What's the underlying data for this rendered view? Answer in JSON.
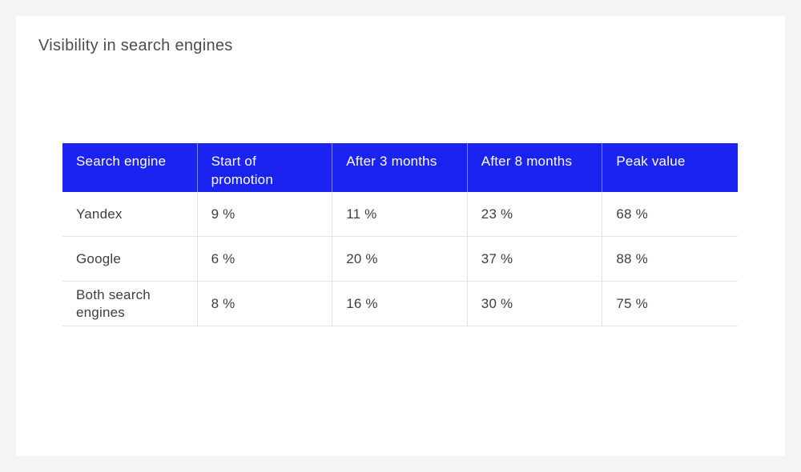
{
  "page": {
    "title": "Visibility in search engines"
  },
  "colors": {
    "page_background": "#f5f4f2",
    "card_background": "#ffffff",
    "header_background": "#1a23f0",
    "header_text": "#ffffff",
    "body_text": "#3e3e3e",
    "title_text": "#4c4c4c",
    "divider": "#e7e6e5"
  },
  "chart_data": {
    "type": "table",
    "title": "Visibility in search engines",
    "columns": [
      "Search engine",
      "Start of promotion",
      "After 3 months",
      "After 8 months",
      "Peak value"
    ],
    "rows": [
      [
        "Yandex",
        "9 %",
        "11 %",
        "23 %",
        "68 %"
      ],
      [
        "Google",
        "6 %",
        "20 %",
        "37 %",
        "88 %"
      ],
      [
        "Both search engines",
        "8 %",
        "16 %",
        "30 %",
        "75 %"
      ]
    ],
    "layout_hints": {
      "header_style": "solid blue background, white text, top-aligned",
      "columns_equal_width": true,
      "grid": "light gray row and column dividers in body"
    }
  }
}
